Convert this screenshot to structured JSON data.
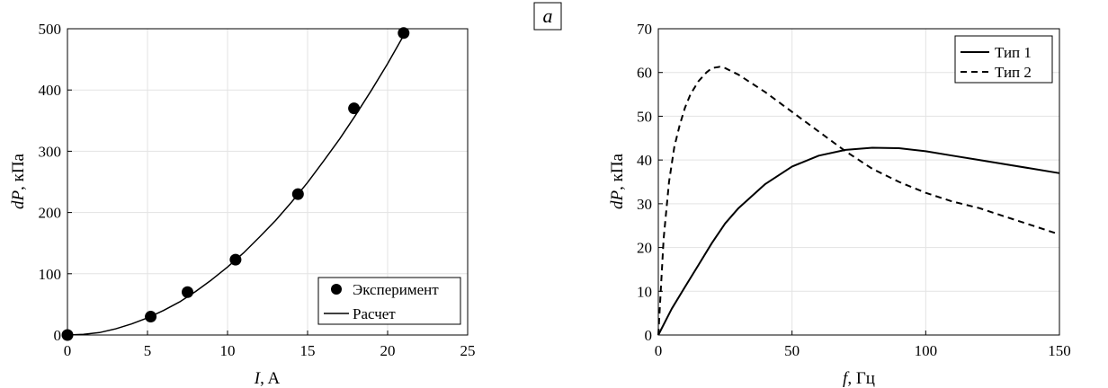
{
  "panel_tag": "a",
  "chart_data": [
    {
      "type": "scatter",
      "xlabel_var": "I",
      "xlabel_unit": ", A",
      "ylabel_var": "dP",
      "ylabel_unit": ", кПа",
      "xlim": [
        0,
        25
      ],
      "ylim": [
        0,
        500
      ],
      "xticks": [
        0,
        5,
        10,
        15,
        20,
        25
      ],
      "yticks": [
        0,
        100,
        200,
        300,
        400,
        500
      ],
      "grid": true,
      "legend_position": "bottom-right",
      "series": [
        {
          "name": "Эксперимент",
          "style": "markers",
          "x": [
            0,
            5.2,
            7.5,
            10.5,
            14.4,
            17.9,
            21.0
          ],
          "y": [
            0,
            30,
            70,
            123,
            230,
            370,
            493
          ]
        },
        {
          "name": "Расчет",
          "style": "solid-line",
          "x": [
            0,
            1,
            2,
            3,
            4,
            5,
            6,
            7,
            8,
            9,
            10,
            11,
            12,
            13,
            14,
            15,
            16,
            17,
            18,
            19,
            20,
            21
          ],
          "y": [
            0,
            1,
            4,
            10,
            18,
            28,
            40,
            54,
            71,
            90,
            111,
            134,
            160,
            187,
            217,
            249,
            284,
            320,
            359,
            400,
            443,
            489
          ]
        }
      ]
    },
    {
      "type": "line",
      "xlabel_var": "f",
      "xlabel_unit": ", Гц",
      "ylabel_var": "dP",
      "ylabel_unit": ", кПа",
      "xlim": [
        0,
        150
      ],
      "ylim": [
        0,
        70
      ],
      "xticks": [
        0,
        50,
        100,
        150
      ],
      "yticks": [
        0,
        10,
        20,
        30,
        40,
        50,
        60,
        70
      ],
      "grid": true,
      "legend_position": "top-right",
      "series": [
        {
          "name": "Тип 1",
          "style": "solid",
          "x": [
            0,
            5,
            10,
            15,
            20,
            25,
            30,
            40,
            50,
            60,
            70,
            80,
            90,
            100,
            110,
            120,
            130,
            140,
            150
          ],
          "y": [
            0,
            6,
            11,
            16,
            21,
            25.5,
            29,
            34.5,
            38.5,
            41,
            42.3,
            42.8,
            42.7,
            42,
            41,
            40,
            39,
            38,
            37
          ]
        },
        {
          "name": "Тип 2",
          "style": "dashed",
          "x": [
            0,
            2,
            4,
            6,
            8,
            10,
            12,
            15,
            18,
            20,
            23,
            25,
            30,
            40,
            50,
            60,
            70,
            80,
            90,
            100,
            110,
            120,
            130,
            140,
            150
          ],
          "y": [
            0,
            22,
            35,
            43,
            48,
            52,
            55,
            58,
            60,
            61,
            61.3,
            61,
            59.5,
            55.5,
            51,
            46.5,
            42,
            38,
            35,
            32.5,
            30.5,
            29,
            27,
            25,
            23
          ]
        }
      ]
    }
  ]
}
